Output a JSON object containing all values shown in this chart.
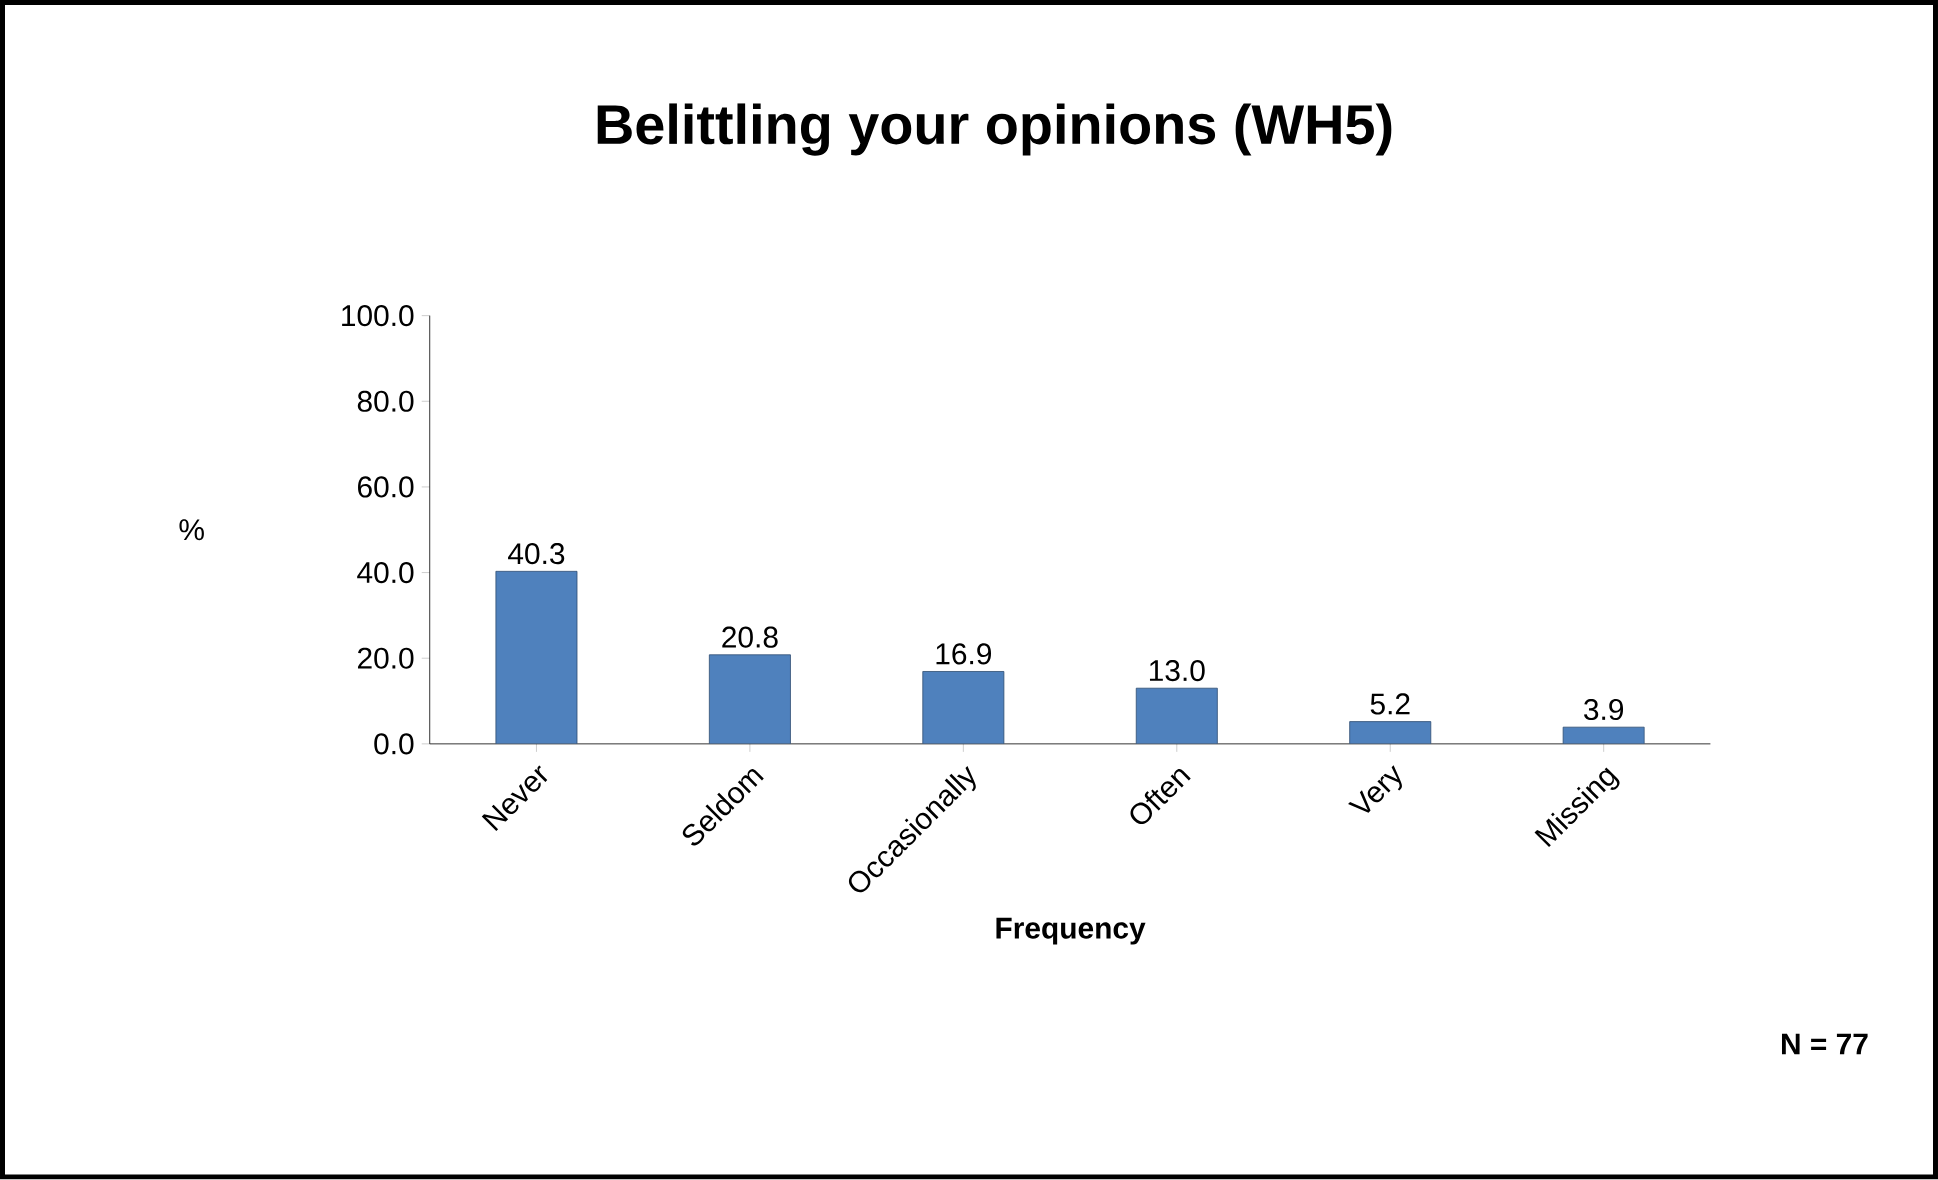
{
  "chart_data": {
    "type": "bar",
    "title": "Belittling your opinions (WH5)",
    "xlabel": "Frequency",
    "ylabel": "%",
    "categories": [
      "Never",
      "Seldom",
      "Occasionally",
      "Often",
      "Very",
      "Missing"
    ],
    "values": [
      40.3,
      20.8,
      16.9,
      13.0,
      5.2,
      3.9
    ],
    "value_labels": [
      "40.3",
      "20.8",
      "16.9",
      "13.0",
      "5.2",
      "3.9"
    ],
    "color": "#4f81bd",
    "ylim": [
      0,
      100
    ],
    "yticks": [
      {
        "value": 0,
        "label": "0.0"
      },
      {
        "value": 20,
        "label": "20.0"
      },
      {
        "value": 40,
        "label": "40.0"
      },
      {
        "value": 60,
        "label": "60.0"
      },
      {
        "value": 80,
        "label": "80.0"
      },
      {
        "value": 100,
        "label": "100.0"
      }
    ],
    "annotations": [
      "N = 77"
    ]
  }
}
